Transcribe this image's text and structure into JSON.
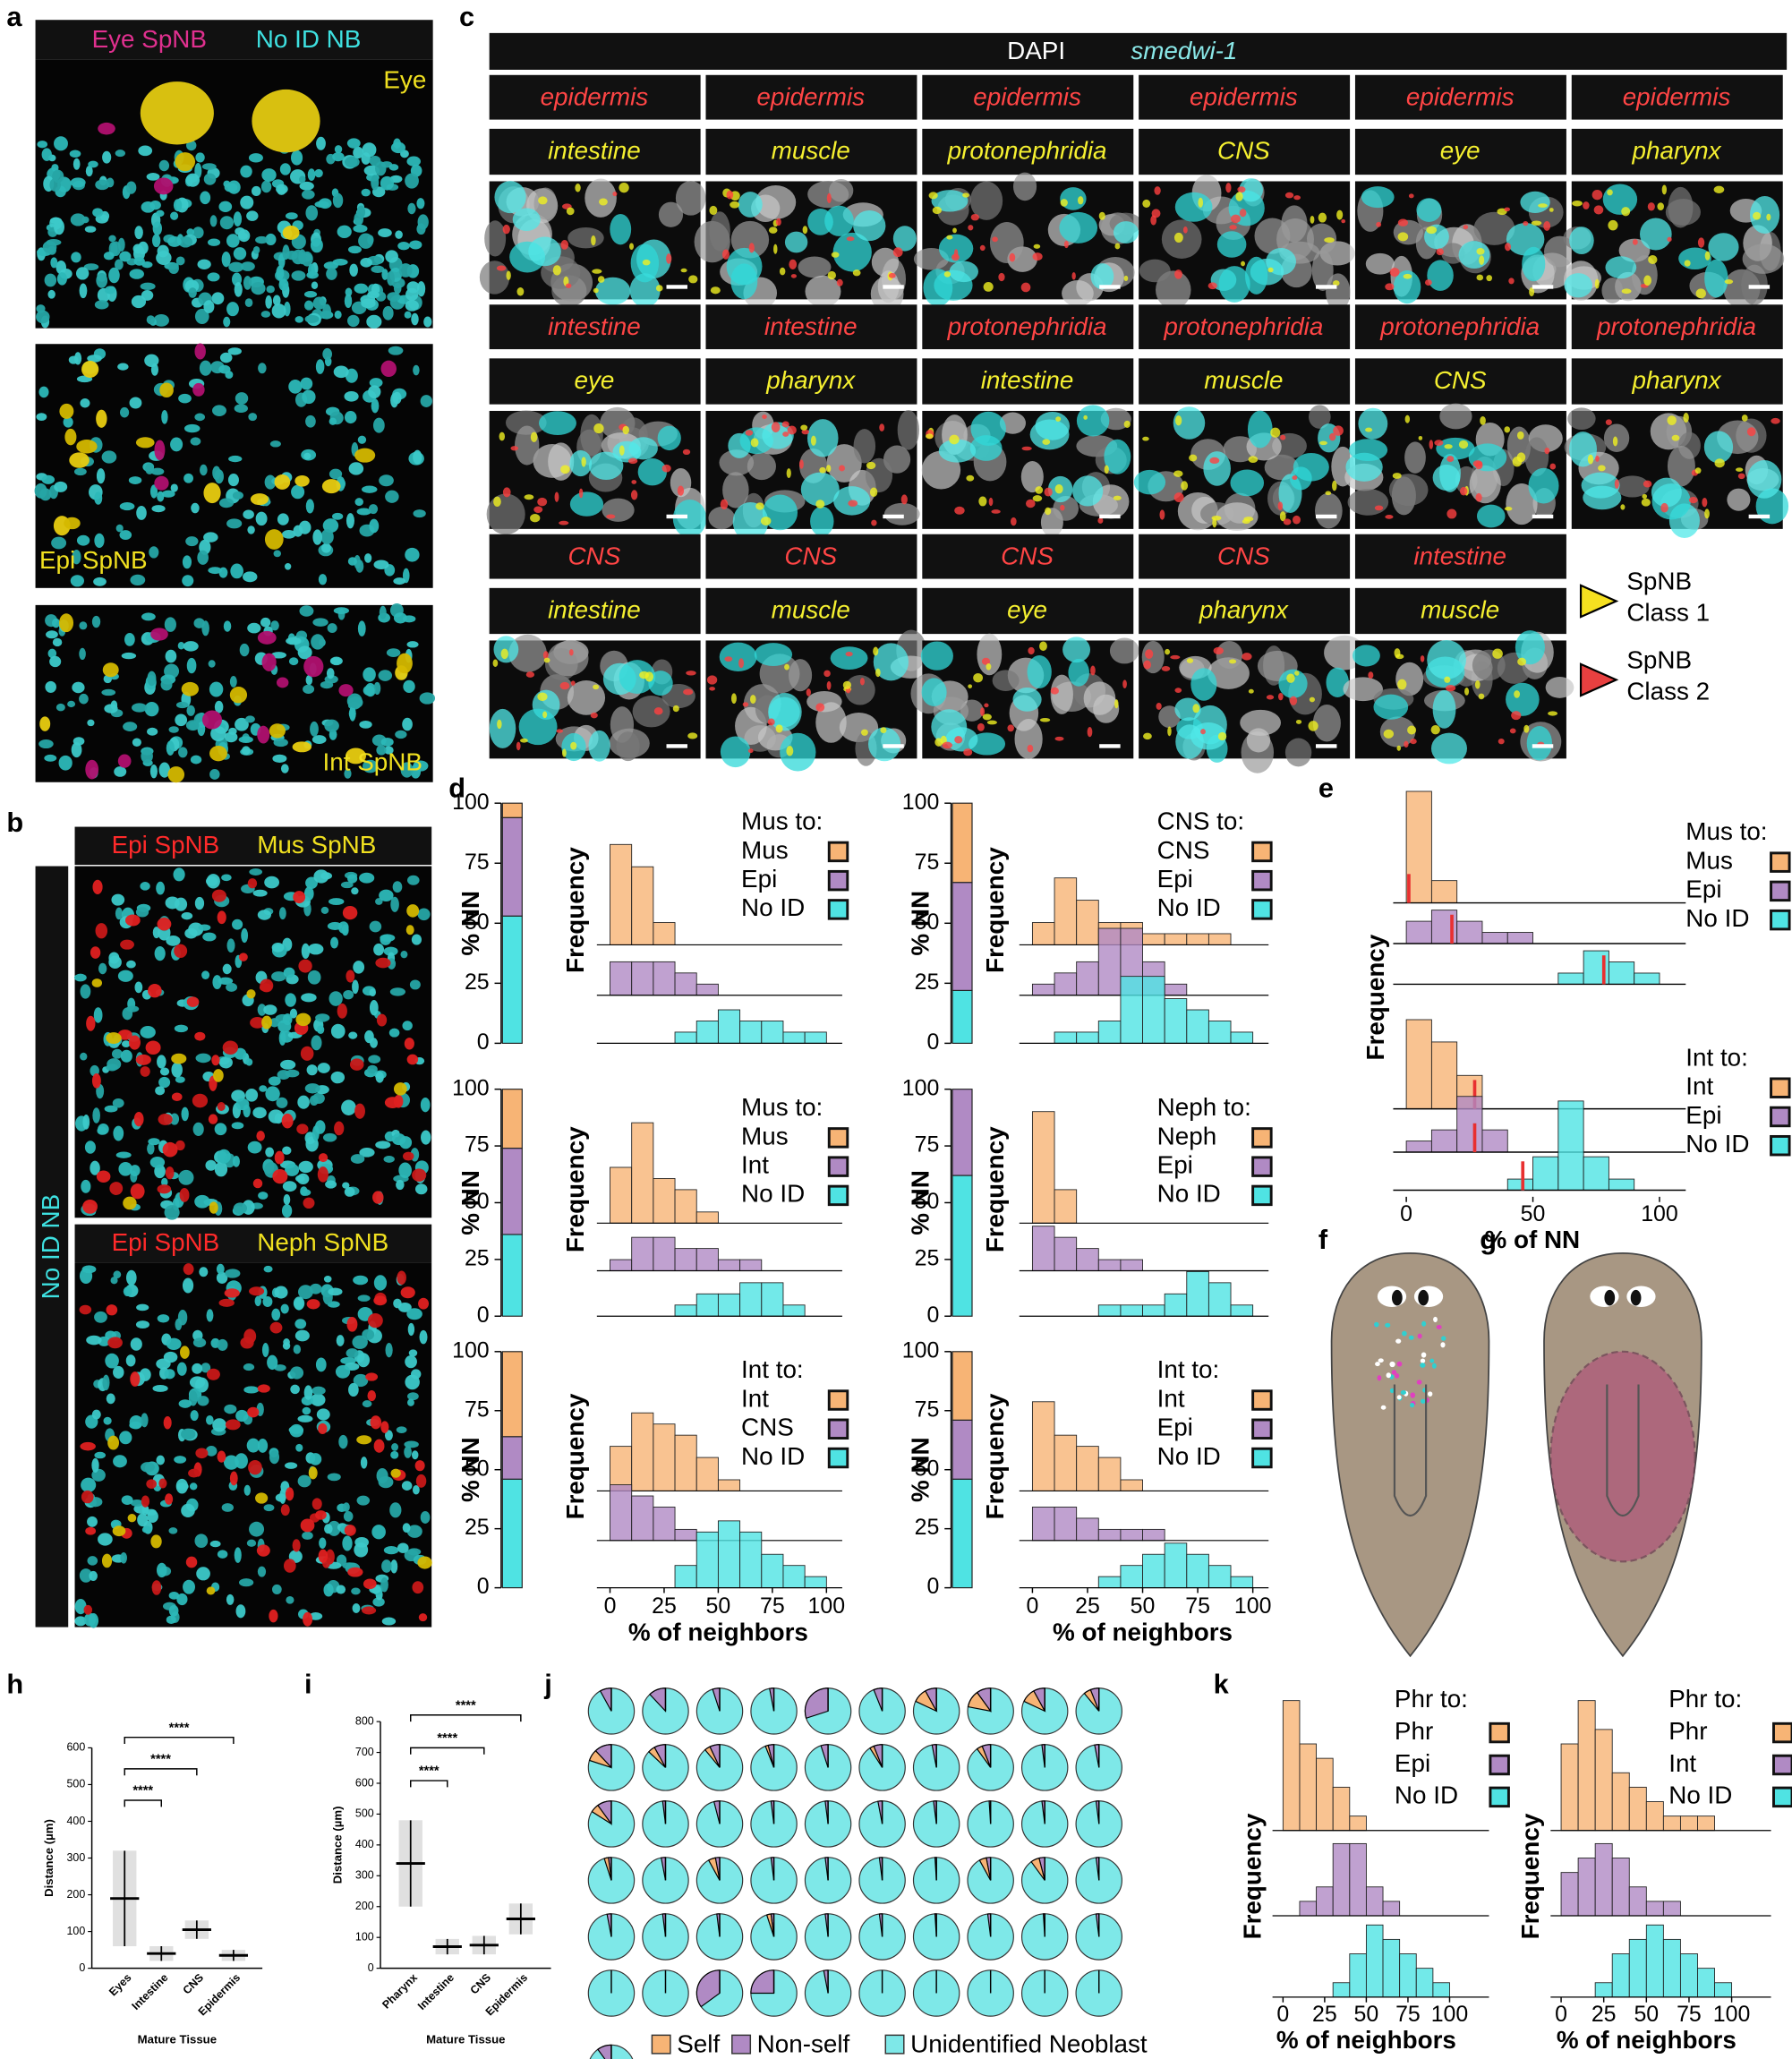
{
  "panel_a": {
    "label": "a",
    "header": [
      "Eye SpNB",
      "No ID NB"
    ],
    "image_labels": [
      "Eye",
      "Epi SpNB",
      "Int SpNB"
    ]
  },
  "panel_b": {
    "label": "b",
    "side_label": "No ID NB",
    "headers": [
      [
        "Epi SpNB",
        "Mus SpNB"
      ],
      [
        "Epi SpNB",
        "Neph SpNB"
      ]
    ]
  },
  "panel_c": {
    "label": "c",
    "header": [
      "DAPI",
      "smedwi-1"
    ],
    "rows": [
      [
        [
          "epidermis",
          "intestine"
        ],
        [
          "epidermis",
          "muscle"
        ],
        [
          "epidermis",
          "protonephridia"
        ],
        [
          "epidermis",
          "CNS"
        ],
        [
          "epidermis",
          "eye"
        ],
        [
          "epidermis",
          "pharynx"
        ]
      ],
      [
        [
          "intestine",
          "eye"
        ],
        [
          "intestine",
          "pharynx"
        ],
        [
          "protonephridia",
          "intestine"
        ],
        [
          "protonephridia",
          "muscle"
        ],
        [
          "protonephridia",
          "CNS"
        ],
        [
          "protonephridia",
          "pharynx"
        ]
      ],
      [
        [
          "CNS",
          "intestine"
        ],
        [
          "CNS",
          "muscle"
        ],
        [
          "CNS",
          "eye"
        ],
        [
          "CNS",
          "pharynx"
        ],
        [
          "intestine",
          "muscle"
        ]
      ]
    ],
    "legend": [
      {
        "lines": [
          "SpNB",
          "Class 1"
        ],
        "color": "#f5e020"
      },
      {
        "lines": [
          "SpNB",
          "Class 2"
        ],
        "color": "#e84040"
      }
    ]
  },
  "panel_d": {
    "label": "d",
    "charts": [
      {
        "type": "histogram",
        "legend_title": "Mus to:",
        "bar_ylabel": "% NN",
        "ylabel": "Frequency",
        "ylim": [
          0,
          100
        ],
        "yticks": [
          0,
          25,
          50,
          75,
          100
        ],
        "bins": [
          0,
          10,
          20,
          30,
          40,
          50,
          60,
          70,
          80,
          90,
          100
        ],
        "series": [
          {
            "name": "Mus",
            "color": "#f7b475",
            "share": 6,
            "values": [
              9,
              7,
              2,
              0,
              0,
              0,
              0,
              0,
              0,
              0
            ]
          },
          {
            "name": "Epi",
            "color": "#b08ac4",
            "share": 41,
            "values": [
              3,
              3,
              3,
              2,
              1,
              0,
              0,
              0,
              0,
              0
            ]
          },
          {
            "name": "No ID",
            "color": "#4fe3e3",
            "share": 53,
            "values": [
              0,
              0,
              0,
              1,
              2,
              3,
              2,
              2,
              1,
              1
            ]
          }
        ]
      },
      {
        "type": "histogram",
        "legend_title": "CNS to:",
        "bar_ylabel": "% NN",
        "ylabel": "Frequency",
        "ylim": [
          0,
          100
        ],
        "yticks": [
          0,
          25,
          50,
          75,
          100
        ],
        "bins": [
          0,
          10,
          20,
          30,
          40,
          50,
          60,
          70,
          80,
          90,
          100
        ],
        "series": [
          {
            "name": "CNS",
            "color": "#f7b475",
            "share": 33,
            "values": [
              2,
              6,
              4,
              2,
              2,
              1,
              1,
              1,
              1,
              0
            ]
          },
          {
            "name": "Epi",
            "color": "#b08ac4",
            "share": 45,
            "values": [
              1,
              2,
              3,
              6,
              6,
              3,
              1,
              0,
              0,
              0
            ]
          },
          {
            "name": "No ID",
            "color": "#4fe3e3",
            "share": 22,
            "values": [
              0,
              1,
              1,
              2,
              6,
              6,
              4,
              3,
              2,
              1
            ]
          }
        ]
      },
      {
        "type": "histogram",
        "legend_title": "Mus to:",
        "bar_ylabel": "% NN",
        "ylabel": "Frequency",
        "ylim": [
          0,
          100
        ],
        "yticks": [
          0,
          25,
          50,
          75,
          100
        ],
        "bins": [
          0,
          10,
          20,
          30,
          40,
          50,
          60,
          70,
          80,
          90,
          100
        ],
        "series": [
          {
            "name": "Mus",
            "color": "#f7b475",
            "share": 26,
            "values": [
              5,
              9,
              4,
              3,
              1,
              0,
              0,
              0,
              0,
              0
            ]
          },
          {
            "name": "Int",
            "color": "#b08ac4",
            "share": 38,
            "values": [
              1,
              3,
              3,
              2,
              2,
              1,
              1,
              0,
              0,
              0
            ]
          },
          {
            "name": "No ID",
            "color": "#4fe3e3",
            "share": 36,
            "values": [
              0,
              0,
              0,
              1,
              2,
              2,
              3,
              3,
              1,
              0
            ]
          }
        ]
      },
      {
        "type": "histogram",
        "legend_title": "Neph to:",
        "bar_ylabel": "% NN",
        "ylabel": "Frequency",
        "ylim": [
          0,
          100
        ],
        "yticks": [
          0,
          25,
          50,
          75,
          100
        ],
        "bins": [
          0,
          10,
          20,
          30,
          40,
          50,
          60,
          70,
          80,
          90,
          100
        ],
        "series": [
          {
            "name": "Neph",
            "color": "#f7b475",
            "share": 0,
            "values": [
              10,
              3,
              0,
              0,
              0,
              0,
              0,
              0,
              0,
              0
            ]
          },
          {
            "name": "Epi",
            "color": "#b08ac4",
            "share": 38,
            "values": [
              4,
              3,
              2,
              1,
              1,
              0,
              0,
              0,
              0,
              0
            ]
          },
          {
            "name": "No ID",
            "color": "#4fe3e3",
            "share": 62,
            "values": [
              0,
              0,
              0,
              1,
              1,
              1,
              2,
              4,
              3,
              1
            ]
          }
        ]
      },
      {
        "type": "histogram",
        "legend_title": "Int to:",
        "bar_ylabel": "% NN",
        "ylabel": "Frequency",
        "ylim": [
          0,
          100
        ],
        "yticks": [
          0,
          25,
          50,
          75,
          100
        ],
        "bins": [
          0,
          10,
          20,
          30,
          40,
          50,
          60,
          70,
          80,
          90,
          100
        ],
        "xticks": [
          0,
          25,
          50,
          75,
          100
        ],
        "xlabel": "% of neighbors",
        "series": [
          {
            "name": "Int",
            "color": "#f7b475",
            "share": 36,
            "values": [
              4,
              7,
              6,
              5,
              3,
              1,
              0,
              0,
              0,
              0
            ]
          },
          {
            "name": "CNS",
            "color": "#b08ac4",
            "share": 18,
            "values": [
              5,
              4,
              3,
              1,
              0,
              0,
              0,
              0,
              0,
              0
            ]
          },
          {
            "name": "No ID",
            "color": "#4fe3e3",
            "share": 46,
            "values": [
              0,
              0,
              0,
              2,
              5,
              6,
              5,
              3,
              2,
              1
            ]
          }
        ]
      },
      {
        "type": "histogram",
        "legend_title": "Int to:",
        "bar_ylabel": "% NN",
        "ylabel": "Frequency",
        "ylim": [
          0,
          100
        ],
        "yticks": [
          0,
          25,
          50,
          75,
          100
        ],
        "bins": [
          0,
          10,
          20,
          30,
          40,
          50,
          60,
          70,
          80,
          90,
          100
        ],
        "xticks": [
          0,
          25,
          50,
          75,
          100
        ],
        "xlabel": "% of neighbors",
        "series": [
          {
            "name": "Int",
            "color": "#f7b475",
            "share": 29,
            "values": [
              8,
              5,
              4,
              3,
              1,
              0,
              0,
              0,
              0,
              0
            ]
          },
          {
            "name": "Epi",
            "color": "#b08ac4",
            "share": 25,
            "values": [
              3,
              3,
              2,
              1,
              1,
              1,
              0,
              0,
              0,
              0
            ]
          },
          {
            "name": "No ID",
            "color": "#4fe3e3",
            "share": 46,
            "values": [
              0,
              0,
              0,
              1,
              2,
              3,
              4,
              3,
              2,
              1
            ]
          }
        ]
      }
    ]
  },
  "panel_e": {
    "label": "e",
    "type": "histogram",
    "ylabel": "Frequency",
    "xlabel": "% of NN",
    "xlim": [
      0,
      100
    ],
    "xticks": [
      0,
      50,
      100
    ],
    "bins": [
      0,
      10,
      20,
      30,
      40,
      50,
      60,
      70,
      80,
      90,
      100
    ],
    "groups": [
      {
        "legend_title": "Mus to:",
        "series": [
          {
            "name": "Mus",
            "color": "#f7b475",
            "median": 1,
            "values": [
              10,
              2,
              0,
              0,
              0,
              0,
              0,
              0,
              0,
              0
            ]
          },
          {
            "name": "Epi",
            "color": "#b08ac4",
            "median": 18,
            "values": [
              2,
              3,
              2,
              1,
              1,
              0,
              0,
              0,
              0,
              0
            ]
          },
          {
            "name": "No ID",
            "color": "#4fe3e3",
            "median": 78,
            "values": [
              0,
              0,
              0,
              0,
              0,
              0,
              1,
              3,
              2,
              1
            ]
          }
        ]
      },
      {
        "legend_title": "Int to:",
        "series": [
          {
            "name": "Int",
            "color": "#f7b475",
            "median": 27,
            "values": [
              8,
              6,
              3,
              0,
              0,
              0,
              0,
              0,
              0,
              0
            ]
          },
          {
            "name": "Epi",
            "color": "#b08ac4",
            "median": 27,
            "values": [
              1,
              2,
              5,
              2,
              0,
              0,
              0,
              0,
              0,
              0
            ]
          },
          {
            "name": "No ID",
            "color": "#4fe3e3",
            "median": 46,
            "values": [
              0,
              0,
              0,
              0,
              1,
              3,
              8,
              3,
              1,
              0
            ]
          }
        ]
      }
    ]
  },
  "panel_f": {
    "label": "f"
  },
  "panel_g": {
    "label": "g"
  },
  "panel_h": {
    "label": "h",
    "type": "scatter",
    "ylabel": "Distance (µm)",
    "xlabel": "Mature Tissue",
    "categories": [
      "Eyes",
      "Intestine",
      "CNS",
      "Epidermis"
    ],
    "means": [
      190,
      40,
      105,
      35
    ],
    "sd": [
      130,
      20,
      25,
      15
    ],
    "ylim": [
      0,
      600
    ],
    "yticks": [
      0,
      100,
      200,
      300,
      400,
      500,
      600
    ],
    "significance": [
      "****",
      "****",
      "****"
    ]
  },
  "panel_i": {
    "label": "i",
    "type": "scatter",
    "ylabel": "Distance (µm)",
    "xlabel": "Mature  Tissue",
    "categories": [
      "Pharynx",
      "Intestine",
      "CNS",
      "Epidermis"
    ],
    "means": [
      340,
      70,
      75,
      160
    ],
    "sd": [
      140,
      25,
      30,
      50
    ],
    "ylim": [
      0,
      800
    ],
    "yticks": [
      0,
      100,
      200,
      300,
      400,
      500,
      600,
      700,
      800
    ],
    "significance": [
      "****",
      "****",
      "****"
    ]
  },
  "panel_j": {
    "label": "j",
    "type": "pie",
    "colors": [
      "#f7b475",
      "#b08ac4",
      "#7ee8e8"
    ],
    "legend": [
      "Self",
      "Non-self",
      "Unidentified Neoblast"
    ],
    "self": [
      0,
      0,
      0,
      0,
      0,
      0,
      10,
      12,
      10,
      5,
      8,
      5,
      4,
      2,
      0,
      3,
      0,
      4,
      0,
      0,
      6,
      0,
      0,
      0,
      0,
      0,
      0,
      0,
      0,
      0,
      3,
      0,
      5,
      0,
      0,
      0,
      0,
      5,
      6,
      0,
      0,
      0,
      0,
      3,
      0,
      0,
      0,
      0,
      0,
      0,
      0,
      0,
      0,
      0,
      0,
      0,
      0,
      0,
      0,
      0,
      0
    ],
    "nonself": [
      8,
      12,
      5,
      3,
      30,
      6,
      8,
      10,
      8,
      6,
      12,
      8,
      7,
      4,
      5,
      6,
      3,
      6,
      2,
      3,
      10,
      2,
      4,
      2,
      2,
      3,
      2,
      1,
      2,
      2,
      2,
      3,
      3,
      2,
      2,
      2,
      1,
      3,
      4,
      2,
      3,
      2,
      2,
      2,
      2,
      2,
      1,
      2,
      1,
      2,
      0,
      0,
      35,
      25,
      3,
      0,
      0,
      0,
      0,
      0,
      10
    ]
  },
  "panel_k": {
    "label": "k",
    "charts": [
      {
        "type": "histogram",
        "legend_title": "Phr to:",
        "ylabel": "Frequency",
        "xlabel": "% of neighbors",
        "xticks": [
          0,
          25,
          50,
          75,
          100
        ],
        "bins": [
          0,
          10,
          20,
          30,
          40,
          50,
          60,
          70,
          80,
          90,
          100
        ],
        "series": [
          {
            "name": "Phr",
            "color": "#f7b475",
            "values": [
              9,
              6,
              5,
              3,
              1,
              0,
              0,
              0,
              0,
              0
            ]
          },
          {
            "name": "Epi",
            "color": "#b08ac4",
            "values": [
              0,
              1,
              2,
              5,
              5,
              2,
              1,
              0,
              0,
              0
            ]
          },
          {
            "name": "No ID",
            "color": "#4fe3e3",
            "values": [
              0,
              0,
              0,
              1,
              3,
              5,
              4,
              3,
              2,
              1
            ]
          }
        ]
      },
      {
        "type": "histogram",
        "legend_title": "Phr to:",
        "ylabel": "Frequency",
        "xlabel": "% of neighbors",
        "xticks": [
          0,
          25,
          50,
          75,
          100
        ],
        "bins": [
          0,
          10,
          20,
          30,
          40,
          50,
          60,
          70,
          80,
          90,
          100
        ],
        "series": [
          {
            "name": "Phr",
            "color": "#f7b475",
            "values": [
              6,
              9,
              7,
              4,
              3,
              2,
              1,
              1,
              1,
              0
            ]
          },
          {
            "name": "Int",
            "color": "#b08ac4",
            "values": [
              3,
              4,
              5,
              4,
              2,
              1,
              1,
              0,
              0,
              0
            ]
          },
          {
            "name": "No ID",
            "color": "#4fe3e3",
            "values": [
              0,
              0,
              1,
              3,
              4,
              5,
              4,
              3,
              2,
              1
            ]
          }
        ]
      }
    ]
  }
}
